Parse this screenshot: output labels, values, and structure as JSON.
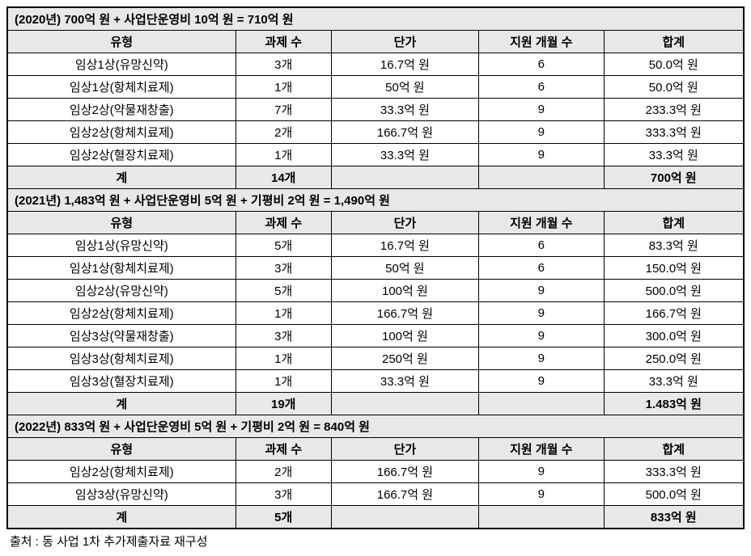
{
  "colors": {
    "border": "#000000",
    "header_bg": "#e8e8e8",
    "background": "#ffffff",
    "text": "#000000"
  },
  "typography": {
    "font_family": "Malgun Gothic",
    "cell_fontsize": 15,
    "header_weight": "bold"
  },
  "layout": {
    "col_widths_pct": [
      31,
      13,
      20,
      17,
      19
    ],
    "border_width_outer": 2,
    "border_width_inner": 1
  },
  "columns": [
    "유형",
    "과제 수",
    "단가",
    "지원 개월 수",
    "합계"
  ],
  "sections": [
    {
      "title": "(2020년) 700억 원 + 사업단운영비 10억 원 = 710억 원",
      "rows": [
        {
          "type": "임상1상(유망신약)",
          "count": "3개",
          "price": "16.7억 원",
          "months": "6",
          "total": "50.0억 원"
        },
        {
          "type": "임상1상(항체치료제)",
          "count": "1개",
          "price": "50억 원",
          "months": "6",
          "total": "50.0억 원"
        },
        {
          "type": "임상2상(약물재창출)",
          "count": "7개",
          "price": "33.3억 원",
          "months": "9",
          "total": "233.3억 원"
        },
        {
          "type": "임상2상(항체치료제)",
          "count": "2개",
          "price": "166.7억 원",
          "months": "9",
          "total": "333.3억 원"
        },
        {
          "type": "임상2상(혈장치료제)",
          "count": "1개",
          "price": "33.3억 원",
          "months": "9",
          "total": "33.3억 원"
        }
      ],
      "subtotal": {
        "type": "계",
        "count": "14개",
        "price": "",
        "months": "",
        "total": "700억 원"
      }
    },
    {
      "title": "(2021년) 1,483억 원 + 사업단운영비 5억 원 + 기평비 2억 원 = 1,490억 원",
      "rows": [
        {
          "type": "임상1상(유망신약)",
          "count": "5개",
          "price": "16.7억 원",
          "months": "6",
          "total": "83.3억 원"
        },
        {
          "type": "임상1상(항체치료제)",
          "count": "3개",
          "price": "50억 원",
          "months": "6",
          "total": "150.0억 원"
        },
        {
          "type": "임상2상(유망신약)",
          "count": "5개",
          "price": "100억 원",
          "months": "9",
          "total": "500.0억 원"
        },
        {
          "type": "임상2상(항체치료제)",
          "count": "1개",
          "price": "166.7억 원",
          "months": "9",
          "total": "166.7억 원"
        },
        {
          "type": "임상3상(약물재창출)",
          "count": "3개",
          "price": "100억 원",
          "months": "9",
          "total": "300.0억 원"
        },
        {
          "type": "임상3상(항체치료제)",
          "count": "1개",
          "price": "250억 원",
          "months": "9",
          "total": "250.0억 원"
        },
        {
          "type": "임상3상(혈장치료제)",
          "count": "1개",
          "price": "33.3억 원",
          "months": "9",
          "total": "33.3억 원"
        }
      ],
      "subtotal": {
        "type": "계",
        "count": "19개",
        "price": "",
        "months": "",
        "total": "1.483억 원"
      }
    },
    {
      "title": "(2022년) 833억 원 + 사업단운영비 5억 원 + 기평비 2억 원 = 840억 원",
      "rows": [
        {
          "type": "임상2상(항체치료제)",
          "count": "2개",
          "price": "166.7억 원",
          "months": "9",
          "total": "333.3억 원"
        },
        {
          "type": "임상3상(유망신약)",
          "count": "3개",
          "price": "166.7억 원",
          "months": "9",
          "total": "500.0억 원"
        }
      ],
      "subtotal": {
        "type": "계",
        "count": "5개",
        "price": "",
        "months": "",
        "total": "833억 원"
      }
    }
  ],
  "source_note": "출처 : 동 사업 1차 추가제출자료 재구성"
}
